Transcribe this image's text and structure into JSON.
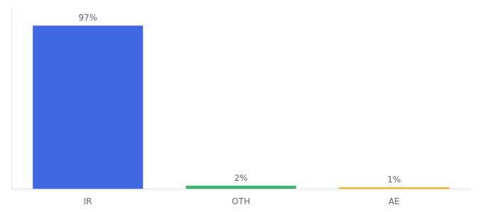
{
  "chart_data": {
    "type": "bar",
    "categories": [
      "IR",
      "OTH",
      "AE"
    ],
    "values": [
      97,
      2,
      1
    ],
    "value_labels": [
      "97%",
      "2%",
      "1%"
    ],
    "colors": [
      "#4169E1",
      "#3CB371",
      "#FFA500"
    ],
    "ylim": [
      0,
      108
    ],
    "data_labels": true,
    "tick_labels": "x",
    "grid": false
  }
}
